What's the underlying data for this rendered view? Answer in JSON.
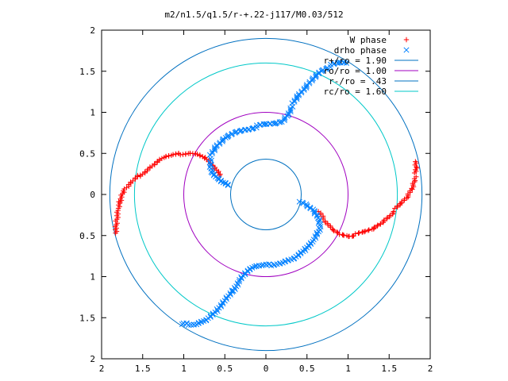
{
  "chart_data": {
    "type": "scatter",
    "title": "m2/n1.5/q1.5/r-+.22-j117/M0.03/512",
    "xlabel": "",
    "ylabel": "",
    "xlim": [
      -2,
      2
    ],
    "ylim": [
      -2,
      2
    ],
    "x_ticks": [
      -2,
      -1.5,
      -1,
      -0.5,
      0,
      0.5,
      1,
      1.5,
      2
    ],
    "y_ticks": [
      -2,
      -1.5,
      -1,
      -0.5,
      0,
      0.5,
      1,
      1.5,
      2
    ],
    "x_tick_labels": [
      "2",
      "1.5",
      "1",
      "0.5",
      "0",
      "0.5",
      "1",
      "1.5",
      "2"
    ],
    "y_tick_labels": [
      "2",
      "1.5",
      "1",
      "0.5",
      "0",
      "0.5",
      "1",
      "1.5",
      "2"
    ],
    "grid": false,
    "legend_position": "top-right",
    "legend": [
      {
        "label": "W phase",
        "marker": "+",
        "color": "#ff0000"
      },
      {
        "label": "drho phase",
        "marker": "x",
        "color": "#0080ff"
      },
      {
        "label": "r+/ro = 1.90",
        "line": true,
        "color": "#0070c0"
      },
      {
        "label": "ro/ro = 1.00",
        "line": true,
        "color": "#a000c0"
      },
      {
        "label": "r-/ro = .43",
        "line": true,
        "color": "#0070c0"
      },
      {
        "label": "rc/ro = 1.60",
        "line": true,
        "color": "#00c8c8"
      }
    ],
    "circles": [
      {
        "name": "r+/ro = 1.90",
        "r": 1.9,
        "color": "#0070c0"
      },
      {
        "name": "ro/ro = 1.00",
        "r": 1.0,
        "color": "#a000c0"
      },
      {
        "name": "r-/ro = .43",
        "r": 0.43,
        "color": "#0070c0"
      },
      {
        "name": "rc/ro = 1.60",
        "r": 1.6,
        "color": "#00c8c8"
      }
    ],
    "series": [
      {
        "name": "W phase",
        "marker": "+",
        "color": "#ff0000",
        "curves": [
          [
            [
              -0.55,
              0.22
            ],
            [
              -0.65,
              0.35
            ],
            [
              -0.75,
              0.45
            ],
            [
              -0.85,
              0.5
            ],
            [
              -0.95,
              0.51
            ],
            [
              -1.05,
              0.49
            ],
            [
              -1.15,
              0.47
            ],
            [
              -1.25,
              0.45
            ],
            [
              -1.35,
              0.38
            ],
            [
              -1.45,
              0.3
            ],
            [
              -1.55,
              0.22
            ],
            [
              -1.62,
              0.16
            ],
            [
              -1.68,
              0.1
            ],
            [
              -1.73,
              0.05
            ],
            [
              -1.76,
              -0.02
            ],
            [
              -1.78,
              -0.1
            ],
            [
              -1.8,
              -0.2
            ],
            [
              -1.82,
              -0.35
            ],
            [
              -1.83,
              -0.47
            ]
          ],
          [
            [
              0.65,
              -0.22
            ],
            [
              0.72,
              -0.33
            ],
            [
              0.8,
              -0.42
            ],
            [
              0.9,
              -0.48
            ],
            [
              1.0,
              -0.5
            ],
            [
              1.1,
              -0.49
            ],
            [
              1.2,
              -0.46
            ],
            [
              1.3,
              -0.42
            ],
            [
              1.4,
              -0.35
            ],
            [
              1.5,
              -0.26
            ],
            [
              1.58,
              -0.18
            ],
            [
              1.65,
              -0.11
            ],
            [
              1.72,
              -0.03
            ],
            [
              1.78,
              0.08
            ],
            [
              1.81,
              0.18
            ],
            [
              1.82,
              0.25
            ],
            [
              1.83,
              0.33
            ],
            [
              1.82,
              0.4
            ]
          ]
        ]
      },
      {
        "name": "drho phase",
        "marker": "x",
        "color": "#0080ff",
        "curves": [
          [
            [
              -0.45,
              0.1
            ],
            [
              -0.52,
              0.14
            ],
            [
              -0.6,
              0.2
            ],
            [
              -0.66,
              0.28
            ],
            [
              -0.68,
              0.38
            ],
            [
              -0.67,
              0.47
            ],
            [
              -0.6,
              0.58
            ],
            [
              -0.48,
              0.7
            ],
            [
              -0.35,
              0.77
            ],
            [
              -0.22,
              0.8
            ],
            [
              -0.1,
              0.83
            ],
            [
              0.0,
              0.85
            ],
            [
              0.1,
              0.86
            ],
            [
              0.2,
              0.89
            ],
            [
              0.27,
              0.98
            ],
            [
              0.33,
              1.1
            ],
            [
              0.4,
              1.2
            ],
            [
              0.48,
              1.3
            ],
            [
              0.58,
              1.42
            ],
            [
              0.68,
              1.52
            ],
            [
              0.8,
              1.57
            ],
            [
              0.9,
              1.6
            ],
            [
              0.98,
              1.6
            ]
          ],
          [
            [
              0.42,
              -0.1
            ],
            [
              0.5,
              -0.14
            ],
            [
              0.58,
              -0.2
            ],
            [
              0.64,
              -0.28
            ],
            [
              0.66,
              -0.38
            ],
            [
              0.63,
              -0.48
            ],
            [
              0.57,
              -0.58
            ],
            [
              0.47,
              -0.68
            ],
            [
              0.35,
              -0.77
            ],
            [
              0.2,
              -0.82
            ],
            [
              0.05,
              -0.86
            ],
            [
              -0.05,
              -0.87
            ],
            [
              -0.15,
              -0.88
            ],
            [
              -0.25,
              -0.95
            ],
            [
              -0.33,
              -1.05
            ],
            [
              -0.4,
              -1.18
            ],
            [
              -0.5,
              -1.3
            ],
            [
              -0.6,
              -1.42
            ],
            [
              -0.72,
              -1.52
            ],
            [
              -0.85,
              -1.57
            ],
            [
              -0.95,
              -1.58
            ],
            [
              -1.02,
              -1.58
            ]
          ]
        ]
      }
    ]
  }
}
